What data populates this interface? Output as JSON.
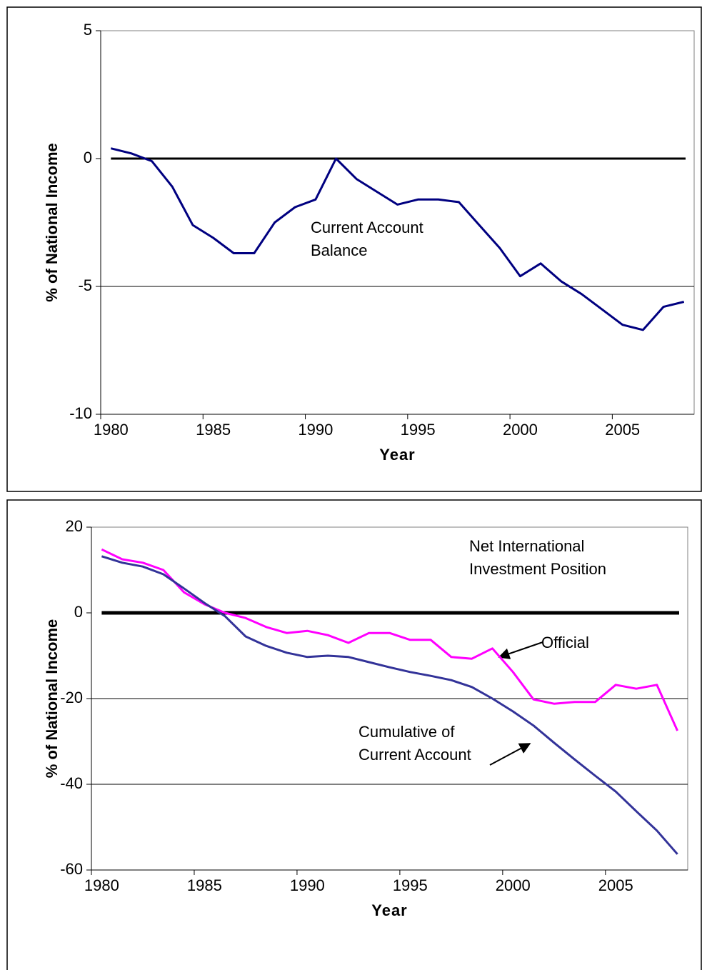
{
  "chart_data": [
    {
      "type": "line",
      "x_label": "Year",
      "y_label": "% of National Income",
      "x": [
        1980,
        1981,
        1982,
        1983,
        1984,
        1985,
        1986,
        1987,
        1988,
        1989,
        1990,
        1991,
        1992,
        1993,
        1994,
        1995,
        1996,
        1997,
        1998,
        1999,
        2000,
        2001,
        2002,
        2003,
        2004,
        2005,
        2006,
        2007,
        2008
      ],
      "series": [
        {
          "color": "#000080",
          "values": [
            0.4,
            0.2,
            -0.1,
            -1.1,
            -2.6,
            -3.1,
            -3.7,
            -3.7,
            -2.5,
            -1.9,
            -1.6,
            0.0,
            -0.8,
            -1.3,
            -1.8,
            -1.6,
            -1.6,
            -1.7,
            -2.6,
            -3.5,
            -4.6,
            -4.1,
            -4.8,
            -5.3,
            -5.9,
            -6.5,
            -6.7,
            -5.8,
            -5.6
          ]
        }
      ],
      "xlim": [
        1979.5,
        2008.5
      ],
      "xticks": [
        1980,
        1985,
        1990,
        1995,
        2000,
        2005
      ],
      "ylim": [
        -10,
        5
      ],
      "yticks": [
        -10,
        -5,
        0,
        5
      ],
      "grid": true,
      "annotations": [
        {
          "lines": [
            "Current Account",
            "Balance"
          ]
        }
      ]
    },
    {
      "type": "line",
      "x_label": "Year",
      "y_label": "% of National Income",
      "x": [
        1980,
        1981,
        1982,
        1983,
        1984,
        1985,
        1986,
        1987,
        1988,
        1989,
        1990,
        1991,
        1992,
        1993,
        1994,
        1995,
        1996,
        1997,
        1998,
        1999,
        2000,
        2001,
        2002,
        2003,
        2004,
        2005,
        2006,
        2007,
        2008
      ],
      "series": [
        {
          "color": "#ff00ff",
          "values": [
            14.8,
            12.5,
            11.7,
            10,
            4.8,
            2,
            0,
            -1.2,
            -3.3,
            -4.7,
            -4.2,
            -5.2,
            -7,
            -4.7,
            -4.7,
            -6.3,
            -6.3,
            -10.3,
            -10.7,
            -8.3,
            -13.8,
            -20.2,
            -21.2,
            -20.8,
            -20.8,
            -16.8,
            -17.7,
            -16.8,
            -27.5
          ]
        },
        {
          "color": "#333399",
          "values": [
            13.2,
            11.7,
            10.8,
            9,
            5.7,
            2.3,
            -0.8,
            -5.5,
            -7.7,
            -9.3,
            -10.3,
            -10,
            -10.3,
            -11.5,
            -12.7,
            -13.8,
            -14.7,
            -15.7,
            -17.3,
            -20,
            -23,
            -26.3,
            -30.3,
            -34.2,
            -38,
            -41.7,
            -46.3,
            -50.8,
            -56.3
          ]
        }
      ],
      "xlim": [
        1979.5,
        2008.5
      ],
      "xticks": [
        1980,
        1985,
        1990,
        1995,
        2000,
        2005
      ],
      "ylim": [
        -60,
        20
      ],
      "yticks": [
        -60,
        -40,
        -20,
        0,
        20
      ],
      "grid": true,
      "annotations": [
        {
          "lines": [
            "Net International",
            "Investment Position"
          ]
        },
        {
          "lines": [
            "Official"
          ]
        },
        {
          "lines": [
            "Cumulative of",
            "Current Account"
          ]
        }
      ]
    }
  ]
}
